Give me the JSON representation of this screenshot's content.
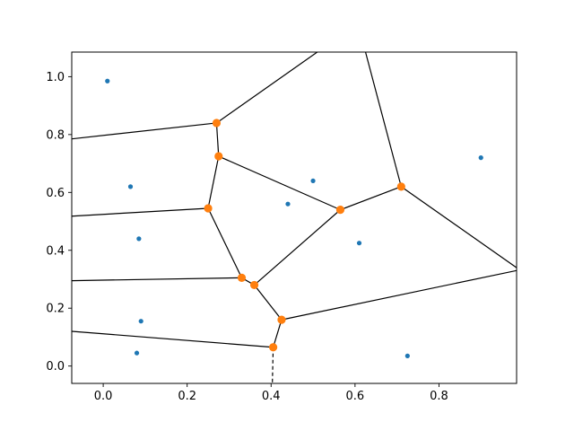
{
  "chart_data": {
    "type": "scatter",
    "xlim": [
      -0.075,
      0.985
    ],
    "ylim": [
      -0.06,
      1.085
    ],
    "xticks": [
      0.0,
      0.2,
      0.4,
      0.6,
      0.8
    ],
    "xtick_labels": [
      "0.0",
      "0.2",
      "0.4",
      "0.6",
      "0.8"
    ],
    "yticks": [
      0.0,
      0.2,
      0.4,
      0.6,
      0.8,
      1.0
    ],
    "ytick_labels": [
      "0.0",
      "0.2",
      "0.4",
      "0.6",
      "0.8",
      "1.0"
    ],
    "grid": false,
    "colors": {
      "points": "#1f77b4",
      "vertices": "#ff7f0e",
      "edges": "#000000"
    },
    "points": [
      {
        "x": 0.01,
        "y": 0.985
      },
      {
        "x": 0.065,
        "y": 0.62
      },
      {
        "x": 0.085,
        "y": 0.44
      },
      {
        "x": 0.09,
        "y": 0.155
      },
      {
        "x": 0.08,
        "y": 0.045
      },
      {
        "x": 0.44,
        "y": 0.56
      },
      {
        "x": 0.5,
        "y": 0.64
      },
      {
        "x": 0.61,
        "y": 0.425
      },
      {
        "x": 0.725,
        "y": 0.035
      },
      {
        "x": 0.9,
        "y": 0.72
      }
    ],
    "vertices": [
      {
        "x": 0.27,
        "y": 0.84
      },
      {
        "x": 0.275,
        "y": 0.725
      },
      {
        "x": 0.25,
        "y": 0.545
      },
      {
        "x": 0.565,
        "y": 0.54
      },
      {
        "x": 0.71,
        "y": 0.62
      },
      {
        "x": 0.33,
        "y": 0.305
      },
      {
        "x": 0.36,
        "y": 0.28
      },
      {
        "x": 0.425,
        "y": 0.16
      },
      {
        "x": 0.405,
        "y": 0.065
      }
    ],
    "ridges": [
      {
        "x1": -0.075,
        "y1": 0.785,
        "x2": 0.27,
        "y2": 0.84,
        "style": "solid"
      },
      {
        "x1": 0.27,
        "y1": 0.84,
        "x2": 0.51,
        "y2": 1.085,
        "style": "solid"
      },
      {
        "x1": 0.27,
        "y1": 0.84,
        "x2": 0.275,
        "y2": 0.725,
        "style": "solid"
      },
      {
        "x1": 0.275,
        "y1": 0.725,
        "x2": 0.25,
        "y2": 0.545,
        "style": "solid"
      },
      {
        "x1": 0.275,
        "y1": 0.725,
        "x2": 0.565,
        "y2": 0.54,
        "style": "solid"
      },
      {
        "x1": -0.075,
        "y1": 0.518,
        "x2": 0.25,
        "y2": 0.545,
        "style": "solid"
      },
      {
        "x1": 0.25,
        "y1": 0.545,
        "x2": 0.33,
        "y2": 0.305,
        "style": "solid"
      },
      {
        "x1": 0.565,
        "y1": 0.54,
        "x2": 0.71,
        "y2": 0.62,
        "style": "solid"
      },
      {
        "x1": 0.565,
        "y1": 0.54,
        "x2": 0.36,
        "y2": 0.28,
        "style": "solid"
      },
      {
        "x1": 0.71,
        "y1": 0.62,
        "x2": 0.625,
        "y2": 1.085,
        "style": "solid"
      },
      {
        "x1": 0.71,
        "y1": 0.62,
        "x2": 0.985,
        "y2": 0.34,
        "style": "solid"
      },
      {
        "x1": -0.075,
        "y1": 0.295,
        "x2": 0.33,
        "y2": 0.305,
        "style": "solid"
      },
      {
        "x1": 0.33,
        "y1": 0.305,
        "x2": 0.36,
        "y2": 0.28,
        "style": "solid"
      },
      {
        "x1": 0.36,
        "y1": 0.28,
        "x2": 0.425,
        "y2": 0.16,
        "style": "solid"
      },
      {
        "x1": 0.425,
        "y1": 0.16,
        "x2": 0.985,
        "y2": 0.33,
        "style": "solid"
      },
      {
        "x1": 0.425,
        "y1": 0.16,
        "x2": 0.405,
        "y2": 0.065,
        "style": "solid"
      },
      {
        "x1": -0.075,
        "y1": 0.12,
        "x2": 0.405,
        "y2": 0.065,
        "style": "solid"
      },
      {
        "x1": 0.405,
        "y1": 0.065,
        "x2": 0.403,
        "y2": -0.06,
        "style": "dashed"
      }
    ]
  }
}
